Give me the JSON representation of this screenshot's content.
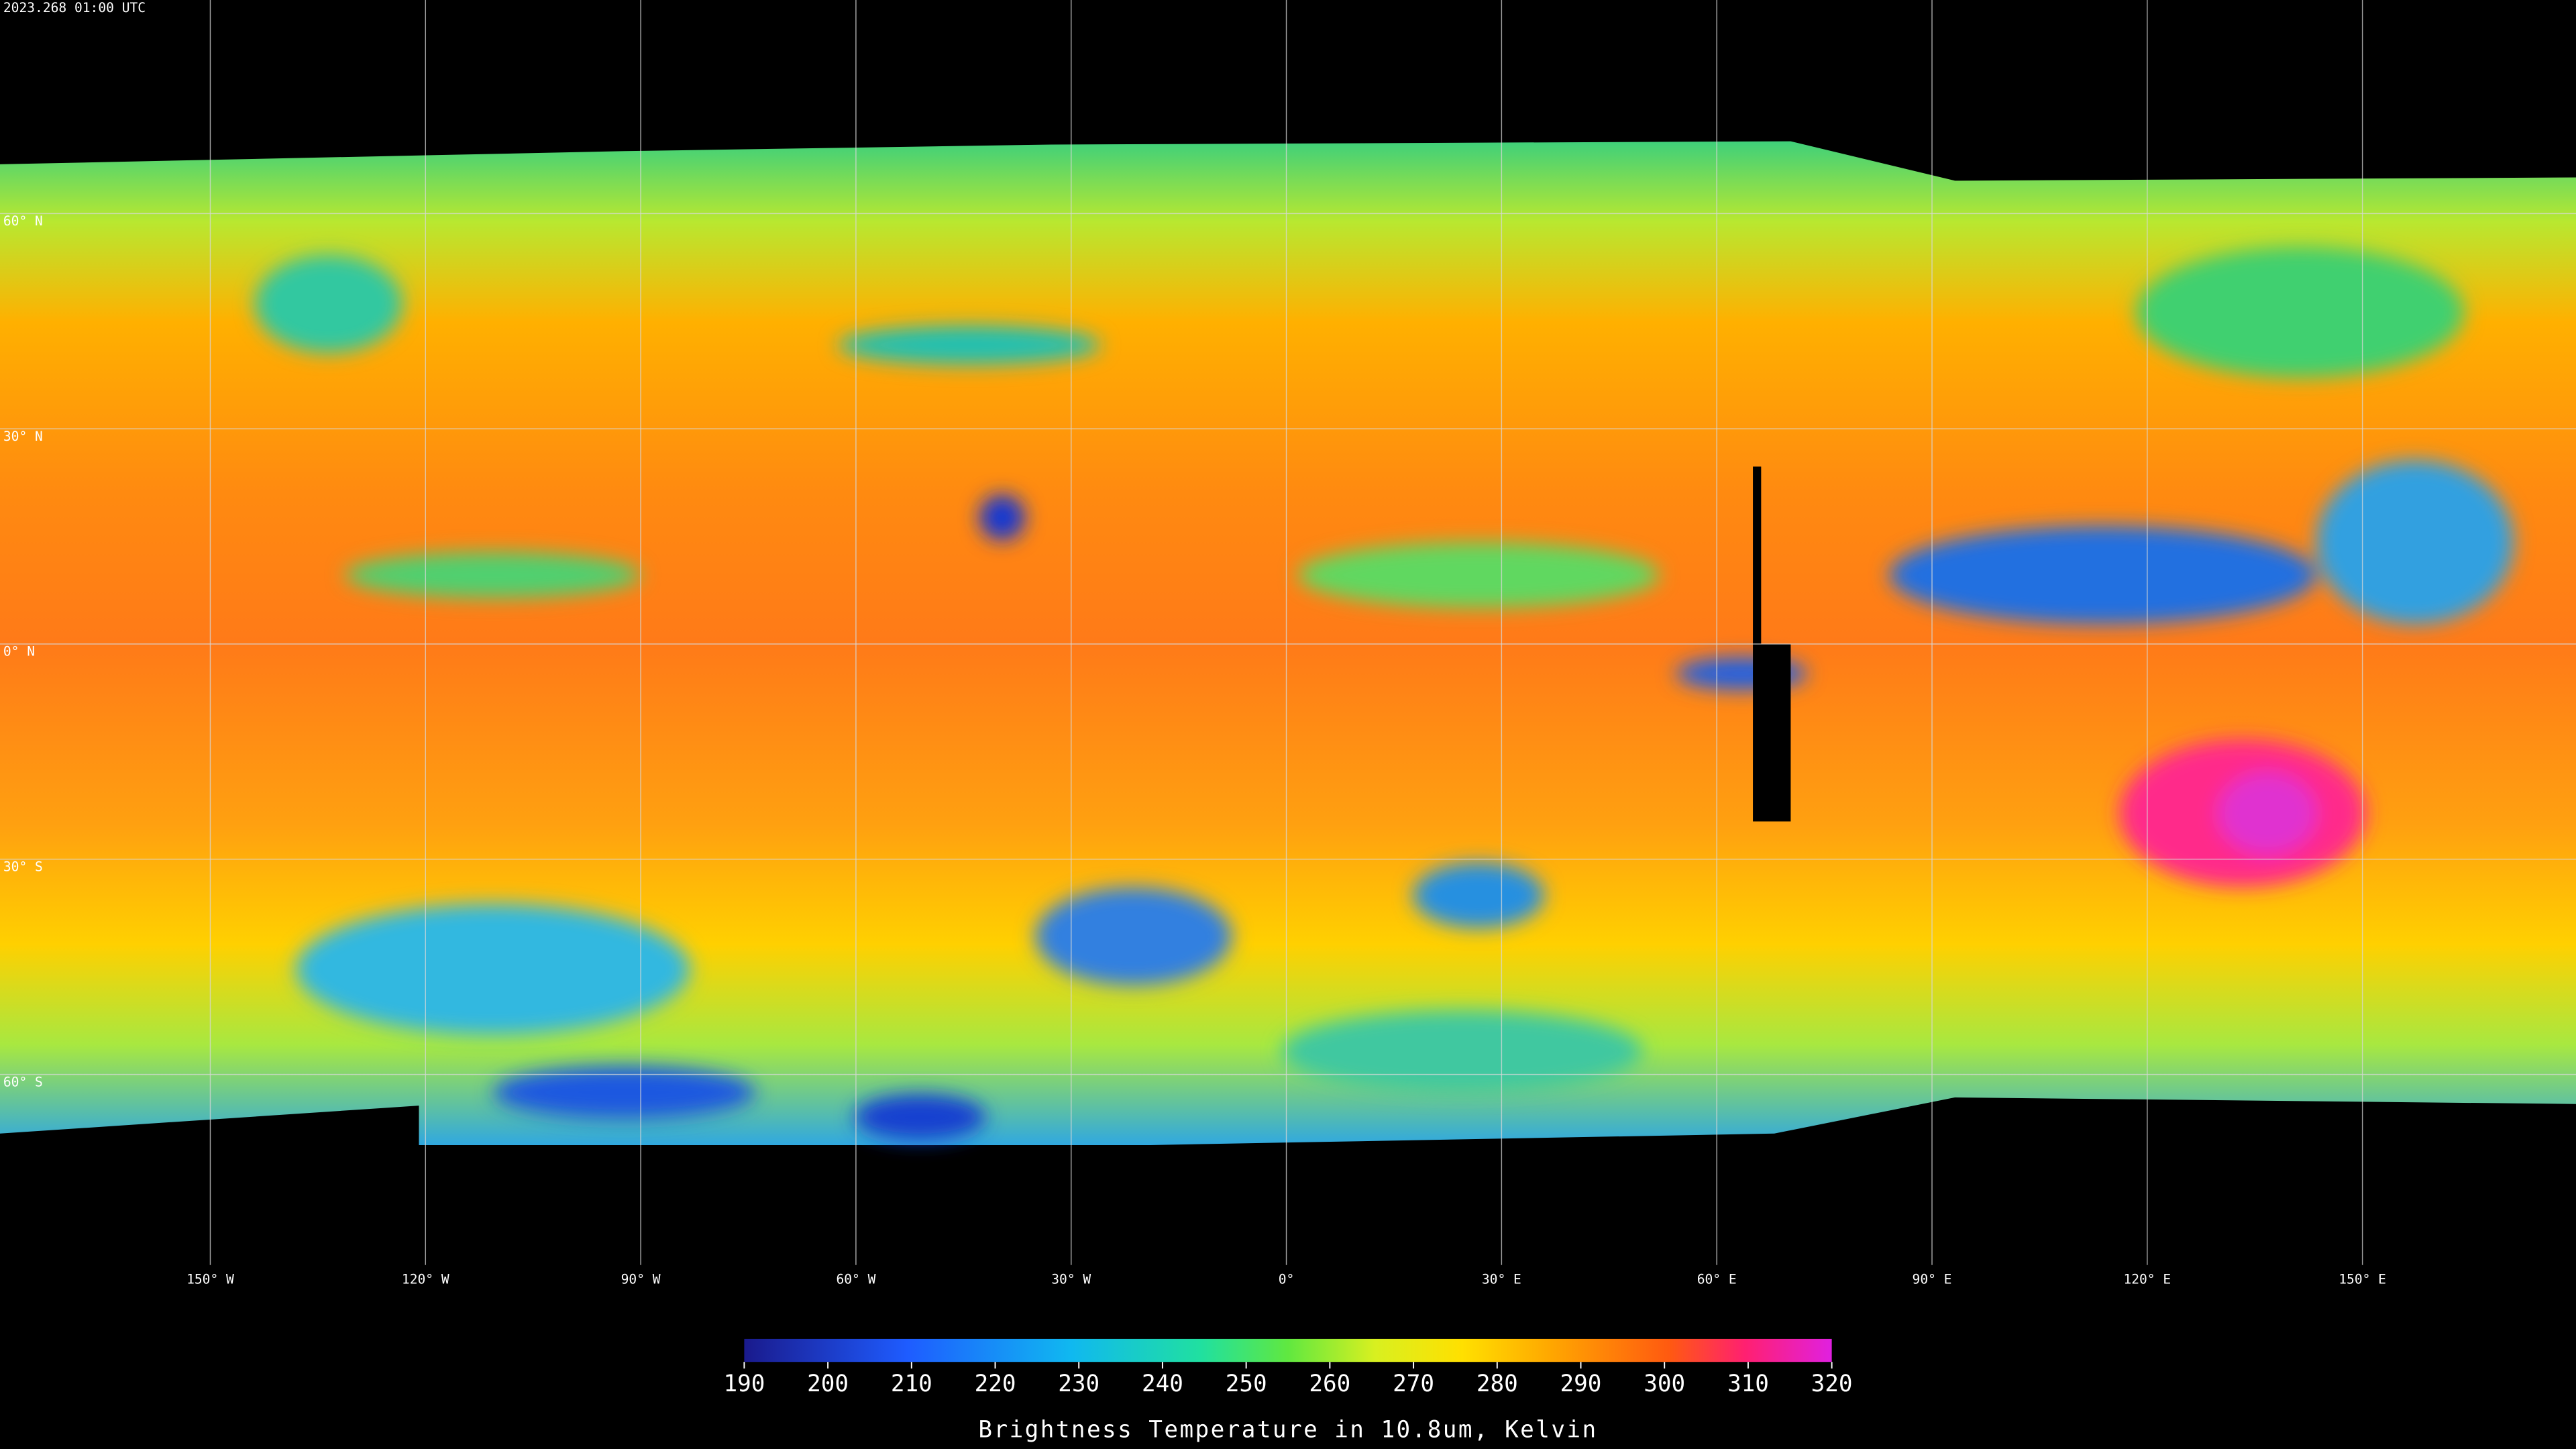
{
  "header": {
    "timestamp": "2023.268 01:00 UTC"
  },
  "map": {
    "lat_labels": [
      "60° N",
      "30° N",
      "0° N",
      "30° S",
      "60° S"
    ],
    "lon_labels": [
      "150° W",
      "120° W",
      "90° W",
      "60° W",
      "30° W",
      "0°",
      "30° E",
      "60° E",
      "90° E",
      "120° E",
      "150° E"
    ]
  },
  "colorbar": {
    "lim": [
      190,
      320
    ],
    "ticks": [
      190,
      200,
      210,
      220,
      230,
      240,
      250,
      260,
      270,
      280,
      290,
      300,
      310,
      320
    ],
    "label": "Brightness Temperature in 10.8um, Kelvin"
  }
}
